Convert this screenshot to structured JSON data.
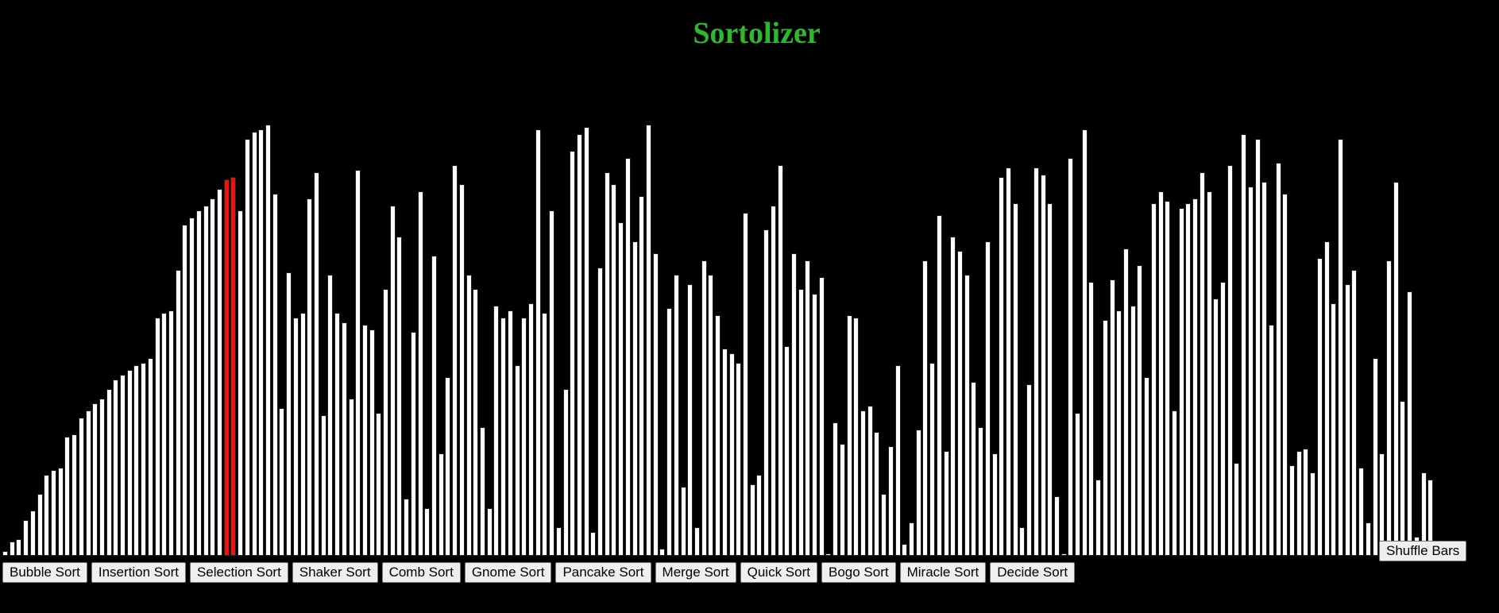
{
  "title": "Sortolizer",
  "colors": {
    "title": "#2eb82e",
    "bar": "#ffffff",
    "active_bar": "#ee1111",
    "background": "#000000"
  },
  "bars": {
    "max": 100,
    "active_indices": [
      32,
      33
    ],
    "values": [
      1,
      3,
      3.5,
      7.5,
      9.5,
      13,
      17,
      18,
      18.5,
      25,
      25.5,
      29,
      30.5,
      32,
      33,
      35,
      37,
      38,
      39,
      40,
      40.5,
      41.5,
      50,
      51,
      51.5,
      60,
      69.5,
      71,
      72.5,
      73.5,
      75,
      77,
      79,
      79.5,
      72.5,
      87.5,
      89,
      89.5,
      90.5,
      76,
      31,
      59.5,
      50,
      51,
      75,
      80.5,
      29.5,
      59,
      51,
      49,
      33,
      81,
      48.5,
      47.5,
      30,
      56,
      73.5,
      67,
      12,
      47,
      76.5,
      10,
      63,
      21.5,
      37.5,
      82,
      78,
      59,
      56,
      27,
      10,
      52.5,
      50,
      51.5,
      40,
      50,
      53,
      89.5,
      51,
      72.5,
      6,
      35,
      85,
      88.5,
      90,
      5,
      60.5,
      80.5,
      78,
      70,
      83.5,
      66,
      75.5,
      90.5,
      63.5,
      1.5,
      52,
      59,
      14.5,
      57,
      6,
      62,
      59,
      50.5,
      43.5,
      42.5,
      40.5,
      72,
      15,
      17,
      68.5,
      73.5,
      82,
      44,
      63.5,
      56,
      62,
      55,
      58.5,
      0.5,
      28,
      23.5,
      50.5,
      50,
      30.5,
      31.5,
      26,
      13,
      23,
      40,
      2.5,
      7,
      26.5,
      62,
      40.5,
      71.5,
      22,
      67,
      64,
      59,
      36.5,
      27,
      66,
      21.5,
      79.5,
      81.5,
      74,
      6,
      36,
      81.5,
      80,
      74,
      12.5,
      0,
      83.5,
      30,
      89.5,
      57.5,
      16,
      49.5,
      58,
      51.5,
      64.5,
      52.5,
      61,
      37.5,
      74,
      76.5,
      74.5,
      30.5,
      73,
      74,
      75,
      80.5,
      76.5,
      54,
      57.5,
      82,
      19.5,
      88.5,
      77.5,
      87.5,
      78.5,
      48.5,
      82.5,
      76,
      19,
      22,
      22.5,
      17.5,
      62.5,
      66,
      53,
      87.5,
      57,
      60,
      18.5,
      7,
      41.5,
      21.5,
      62,
      78.5,
      32.5,
      55.5,
      4,
      17.5,
      16
    ]
  },
  "sort_buttons": [
    "Bubble Sort",
    "Insertion Sort",
    "Selection Sort",
    "Shaker Sort",
    "Comb Sort",
    "Gnome Sort",
    "Pancake Sort",
    "Merge Sort",
    "Quick Sort",
    "Bogo Sort",
    "Miracle Sort",
    "Decide Sort"
  ],
  "shuffle_label": "Shuffle Bars"
}
